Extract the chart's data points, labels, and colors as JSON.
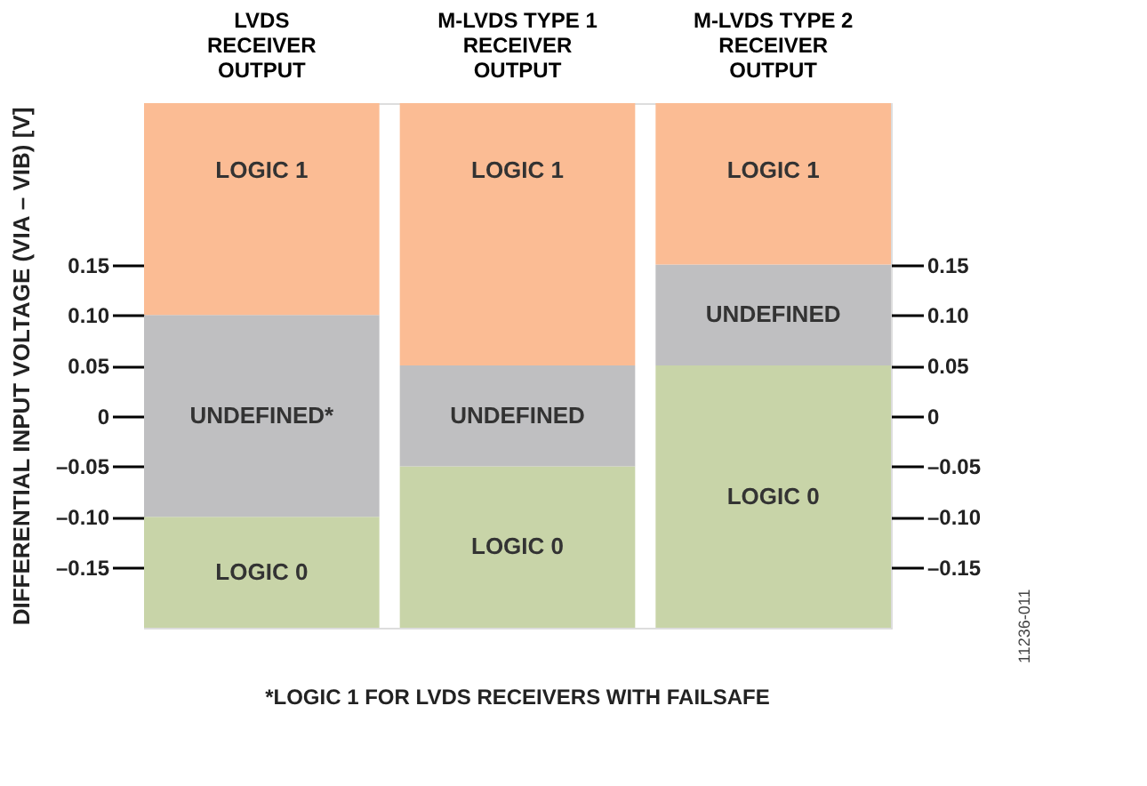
{
  "chart_data": {
    "type": "bar",
    "categories": [
      "LVDS\nRECEIVER\nOUTPUT",
      "M-LVDS TYPE 1\nRECEIVER\nOUTPUT",
      "M-LVDS TYPE 2\nRECEIVER\nOUTPUT"
    ],
    "ylabel": "DIFFERENTIAL INPUT VOLTAGE (VIA – VIB) [V]",
    "ylim": [
      -0.21,
      0.31
    ],
    "yticks": [
      {
        "value": -0.15,
        "label": "–0.15"
      },
      {
        "value": -0.1,
        "label": "–0.10"
      },
      {
        "value": -0.05,
        "label": "–0.05"
      },
      0,
      {
        "value": 0.05,
        "label": "0.05"
      },
      {
        "value": 0.1,
        "label": "0.10"
      },
      0.15
    ],
    "y2lim": [
      -0.21,
      0.31
    ],
    "y2ticks": [
      {
        "value": -0.15,
        "label": "–0.15"
      },
      {
        "value": -0.1,
        "label": "–0.10"
      },
      {
        "value": -0.05,
        "label": "–0.05"
      },
      0,
      {
        "value": 0.05,
        "label": "0.05"
      },
      {
        "value": 0.1,
        "label": "0.10"
      },
      0.15
    ],
    "series": [
      {
        "color": "#c8d4a8",
        "base": [
          -0.21,
          -0.21,
          -0.21
        ],
        "values": [
          0.11,
          0.16,
          0.26
        ],
        "value_labels": [
          "LOGIC 0",
          "LOGIC 0",
          "LOGIC 0"
        ]
      },
      {
        "color": "#bfbfc1",
        "base": [
          -0.1,
          -0.05,
          0.05
        ],
        "values": [
          0.2,
          0.1,
          0.1
        ],
        "value_labels": [
          "UNDEFINED*",
          "UNDEFINED",
          "UNDEFINED"
        ]
      },
      {
        "color": "#fbbc94",
        "base": [
          0.1,
          0.05,
          0.15
        ],
        "values": [
          0.21,
          0.26,
          0.16
        ],
        "value_labels": [
          "LOGIC 1",
          "LOGIC 1",
          "LOGIC 1"
        ]
      }
    ],
    "annotations": [
      "*LOGIC 1 FOR LVDS RECEIVERS WITH FAILSAFE",
      "11236-011"
    ],
    "grid": false
  }
}
